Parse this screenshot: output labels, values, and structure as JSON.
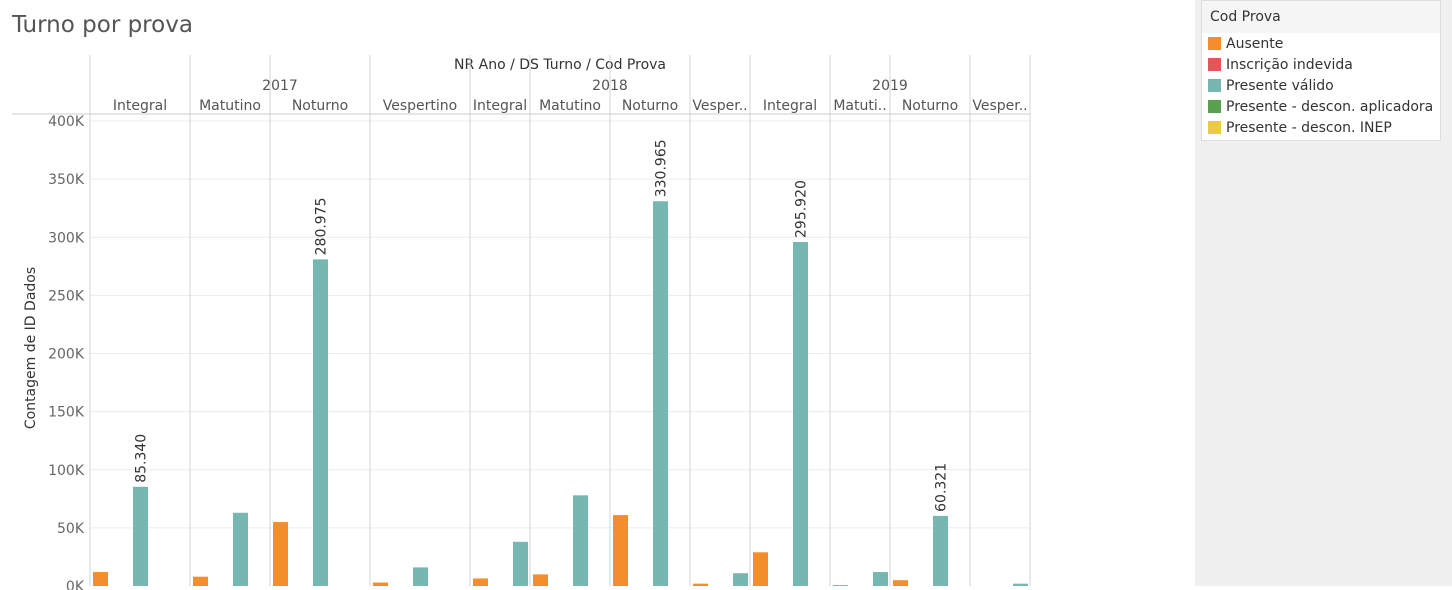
{
  "title": "Turno por prova",
  "legend": {
    "title": "Cod Prova",
    "items": [
      {
        "label": "Ausente",
        "color": "#f28e2b"
      },
      {
        "label": "Inscrição indevida",
        "color": "#e15759"
      },
      {
        "label": "Presente válido",
        "color": "#76b7b2"
      },
      {
        "label": "Presente - descon. aplicadora",
        "color": "#59a14f"
      },
      {
        "label": "Presente - descon. INEP",
        "color": "#edc948"
      }
    ]
  },
  "chart_data": {
    "type": "bar",
    "title": "Turno por prova",
    "header": "NR Ano  /  DS Turno  /  Cod Prova",
    "ylabel": "Contagem de ID Dados",
    "ylim": [
      0,
      400000
    ],
    "yticks": [
      0,
      50000,
      100000,
      150000,
      200000,
      250000,
      300000,
      350000,
      400000
    ],
    "ytick_labels": [
      "0K",
      "50K",
      "100K",
      "150K",
      "200K",
      "250K",
      "300K",
      "350K",
      "400K"
    ],
    "grid": true,
    "legend_position": "top-right",
    "series_order": [
      "Ausente",
      "Inscrição indevida",
      "Presente válido",
      "Presente - descon. aplicadora",
      "Presente - descon. INEP"
    ],
    "years": [
      {
        "year": "2017",
        "shifts": [
          {
            "label": "Integral",
            "values": [
              12000,
              0,
              85340,
              0,
              0
            ],
            "data_labels": [
              null,
              null,
              "85.340",
              null,
              null
            ]
          },
          {
            "label": "Matutino",
            "values": [
              8000,
              0,
              63000,
              0,
              0
            ],
            "data_labels": [
              null,
              null,
              null,
              null,
              null
            ]
          },
          {
            "label": "Noturno",
            "values": [
              55000,
              0,
              280975,
              0,
              0
            ],
            "data_labels": [
              null,
              null,
              "280.975",
              null,
              null
            ]
          },
          {
            "label": "Vespertino",
            "values": [
              3000,
              0,
              16000,
              0,
              0
            ],
            "data_labels": [
              null,
              null,
              null,
              null,
              null
            ]
          }
        ]
      },
      {
        "year": "2018",
        "shifts": [
          {
            "label": "Integral",
            "values": [
              6500,
              0,
              38000,
              0,
              0
            ],
            "data_labels": [
              null,
              null,
              null,
              null,
              null
            ]
          },
          {
            "label": "Matutino",
            "values": [
              10000,
              0,
              78000,
              0,
              0
            ],
            "data_labels": [
              null,
              null,
              null,
              null,
              null
            ]
          },
          {
            "label": "Noturno",
            "values": [
              61000,
              0,
              330965,
              0,
              0
            ],
            "data_labels": [
              null,
              null,
              "330.965",
              null,
              null
            ]
          },
          {
            "label": "Vesper..",
            "values": [
              2000,
              0,
              11000,
              0,
              0
            ],
            "data_labels": [
              null,
              null,
              null,
              null,
              null
            ]
          }
        ]
      },
      {
        "year": "2019",
        "shifts": [
          {
            "label": "Integral",
            "values": [
              29000,
              0,
              295920,
              0,
              0
            ],
            "data_labels": [
              null,
              null,
              "295.920",
              null,
              null
            ]
          },
          {
            "label": "Matuti..",
            "values": [
              800,
              0,
              12000,
              0,
              0
            ],
            "data_labels": [
              null,
              null,
              null,
              null,
              null
            ]
          },
          {
            "label": "Noturno",
            "values": [
              5000,
              0,
              60321,
              0,
              0
            ],
            "data_labels": [
              null,
              null,
              "60.321",
              null,
              null
            ]
          },
          {
            "label": "Vesper..",
            "values": [
              0,
              0,
              2000,
              0,
              0
            ],
            "data_labels": [
              null,
              null,
              null,
              null,
              null
            ]
          }
        ]
      }
    ]
  }
}
